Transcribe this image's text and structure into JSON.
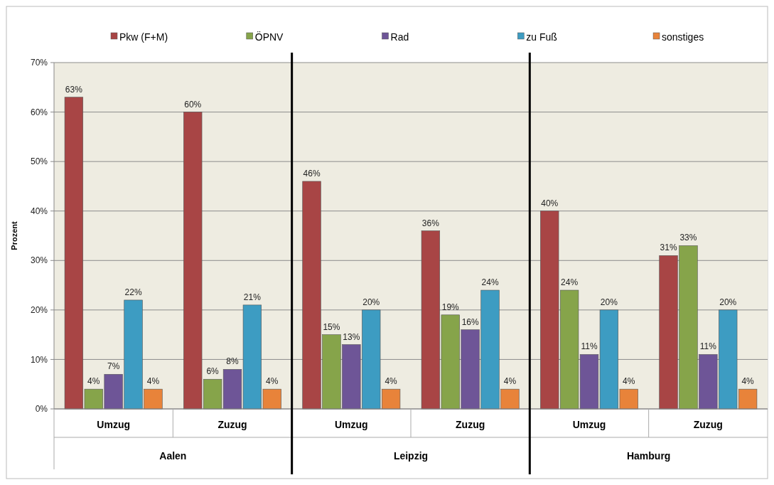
{
  "chart_data": {
    "type": "bar",
    "ylabel": "Prozent",
    "categories": [
      "Umzug",
      "Zuzug",
      "Umzug",
      "Zuzug",
      "Umzug",
      "Zuzug"
    ],
    "annotations": [
      "Aalen",
      "Leipzig",
      "Hamburg"
    ],
    "series": [
      {
        "name": "Pkw (F+M)",
        "color": "#a84545",
        "values": [
          63,
          60,
          46,
          36,
          40,
          31
        ],
        "value_labels": [
          "63%",
          "60%",
          "46%",
          "36%",
          "40%",
          "31%"
        ]
      },
      {
        "name": "ÖPNV",
        "color": "#86a44a",
        "values": [
          4,
          6,
          15,
          19,
          24,
          33
        ],
        "value_labels": [
          "4%",
          "6%",
          "15%",
          "19%",
          "24%",
          "33%"
        ]
      },
      {
        "name": "Rad",
        "color": "#6e5597",
        "values": [
          7,
          8,
          13,
          16,
          11,
          11
        ],
        "value_labels": [
          "7%",
          "8%",
          "13%",
          "16%",
          "11%",
          "11%"
        ]
      },
      {
        "name": "zu Fuß",
        "color": "#3d9cc2",
        "values": [
          22,
          21,
          20,
          24,
          20,
          20
        ],
        "value_labels": [
          "22%",
          "21%",
          "20%",
          "24%",
          "20%",
          "20%"
        ]
      },
      {
        "name": "sonstiges",
        "color": "#e8833a",
        "values": [
          4,
          4,
          4,
          4,
          4,
          4
        ],
        "value_labels": [
          "4%",
          "4%",
          "4%",
          "4%",
          "4%",
          "4%"
        ]
      }
    ],
    "ylim": [
      0,
      70
    ],
    "yticks": [
      {
        "value": 0,
        "label": "0%"
      },
      {
        "value": 10,
        "label": "10%"
      },
      {
        "value": 20,
        "label": "20%"
      },
      {
        "value": 30,
        "label": "30%"
      },
      {
        "value": 40,
        "label": "40%"
      },
      {
        "value": 50,
        "label": "50%"
      },
      {
        "value": 60,
        "label": "60%"
      },
      {
        "value": 70,
        "label": "70%"
      }
    ],
    "grid": "y",
    "legend": "top"
  }
}
